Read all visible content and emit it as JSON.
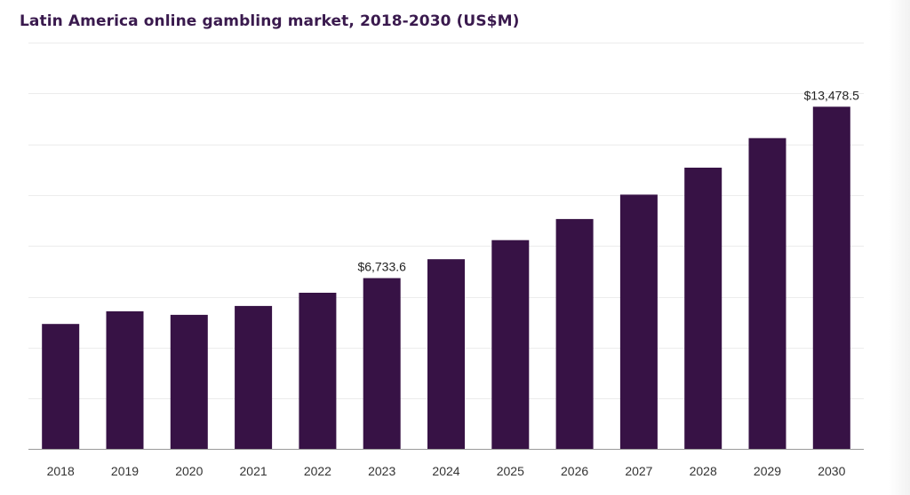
{
  "chart_data": {
    "type": "bar",
    "title": "Latin America online gambling market, 2018-2030 (US$M)",
    "categories": [
      "2018",
      "2019",
      "2020",
      "2021",
      "2022",
      "2023",
      "2024",
      "2025",
      "2026",
      "2027",
      "2028",
      "2029",
      "2030"
    ],
    "values": [
      4930,
      5430,
      5290,
      5640,
      6160,
      6733.6,
      7480,
      8230,
      9060,
      10020,
      11080,
      12240,
      13478.5
    ],
    "value_labels": [
      {
        "category": "2023",
        "text": "$6,733.6"
      },
      {
        "category": "2030",
        "text": "$13,478.5"
      }
    ],
    "xlabel": "",
    "ylabel": "",
    "ylim": [
      0,
      16000
    ],
    "grid": true,
    "legend": "none",
    "colors": {
      "bar": "#371245",
      "title": "#3a1a4e",
      "grid": "#ececec",
      "axis": "#999999"
    }
  }
}
